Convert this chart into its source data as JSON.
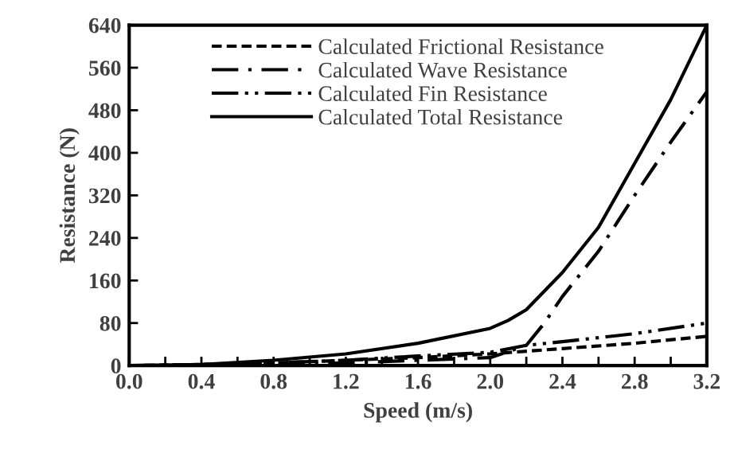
{
  "chart_data": {
    "type": "line",
    "xlabel": "Speed (m/s)",
    "ylabel": "Resistance (N)",
    "xlim": [
      0,
      3.2
    ],
    "ylim": [
      0,
      640
    ],
    "xticks": [
      {
        "value": 0,
        "label": "0.0"
      },
      {
        "value": 0.2,
        "label": null
      },
      {
        "value": 0.4,
        "label": "0.4"
      },
      {
        "value": 0.6,
        "label": null
      },
      {
        "value": 0.8,
        "label": "0.8"
      },
      {
        "value": 1.0,
        "label": null
      },
      {
        "value": 1.2,
        "label": "1.2"
      },
      {
        "value": 1.4,
        "label": null
      },
      {
        "value": 1.6,
        "label": "1.6"
      },
      {
        "value": 1.8,
        "label": null
      },
      {
        "value": 2.0,
        "label": "2.0"
      },
      {
        "value": 2.2,
        "label": null
      },
      {
        "value": 2.4,
        "label": "2.4"
      },
      {
        "value": 2.6,
        "label": null
      },
      {
        "value": 2.8,
        "label": "2.8"
      },
      {
        "value": 3.0,
        "label": null
      },
      {
        "value": 3.2,
        "label": "3.2"
      }
    ],
    "yticks": [
      0,
      80,
      160,
      240,
      320,
      400,
      480,
      560,
      640
    ],
    "grid": false,
    "legend": "top",
    "series": [
      {
        "name": "Calculated Frictional Resistance",
        "color": "#000000",
        "line_style": "dashed",
        "x": [
          0,
          0.4,
          0.8,
          1.2,
          1.6,
          2.0,
          2.4,
          2.8,
          3.2
        ],
        "values": [
          0,
          2,
          5,
          10,
          15,
          22,
          32,
          42,
          55
        ]
      },
      {
        "name": "Calculated Wave Resistance",
        "color": "#000000",
        "line_style": "dashdot",
        "x": [
          0,
          0.4,
          0.8,
          1.2,
          1.6,
          2.0,
          2.2,
          2.3,
          2.4,
          2.6,
          2.8,
          3.0,
          3.2
        ],
        "values": [
          0,
          0,
          2,
          5,
          10,
          15,
          38,
          80,
          130,
          215,
          320,
          420,
          515
        ]
      },
      {
        "name": "Calculated Fin Resistance",
        "color": "#000000",
        "line_style": "dashdotdot",
        "x": [
          0,
          0.4,
          0.8,
          1.2,
          1.6,
          2.0,
          2.2,
          2.4,
          2.8,
          3.2
        ],
        "values": [
          0,
          2,
          5,
          10,
          18,
          25,
          38,
          45,
          60,
          80
        ]
      },
      {
        "name": "Calculated Total Resistance",
        "color": "#000000",
        "line_style": "solid",
        "x": [
          0,
          0.4,
          0.8,
          1.2,
          1.6,
          2.0,
          2.1,
          2.2,
          2.4,
          2.6,
          2.8,
          3.0,
          3.2
        ],
        "values": [
          0,
          2,
          10,
          22,
          42,
          70,
          85,
          105,
          175,
          260,
          380,
          500,
          640
        ]
      }
    ]
  }
}
